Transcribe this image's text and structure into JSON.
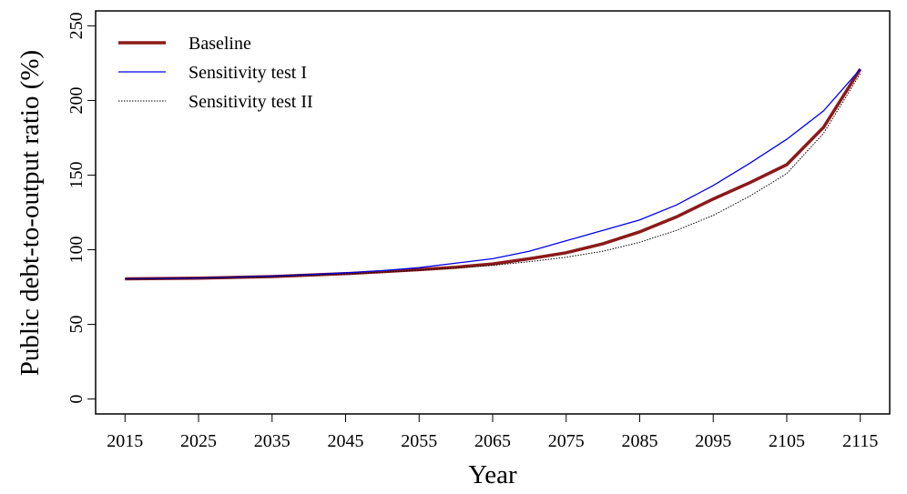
{
  "chart_data": {
    "type": "line",
    "x_label": "Year",
    "y_label": "Public debt-to-output ratio (%)",
    "x": [
      2015,
      2020,
      2025,
      2030,
      2035,
      2040,
      2045,
      2050,
      2055,
      2060,
      2065,
      2070,
      2075,
      2080,
      2085,
      2090,
      2095,
      2100,
      2105,
      2110,
      2115
    ],
    "series": [
      {
        "name": "Baseline",
        "color": "#8b1a1a",
        "width": 3.5,
        "dash": "none",
        "values": [
          80.5,
          80.7,
          81,
          81.5,
          82,
          83,
          84,
          85.3,
          86.7,
          88.3,
          90.5,
          94,
          98,
          104,
          112,
          122,
          134,
          145,
          157,
          182,
          221
        ]
      },
      {
        "name": "Sensitivity test I",
        "color": "#0000ee",
        "width": 1.3,
        "dash": "none",
        "values": [
          80.5,
          80.7,
          81,
          81.6,
          82.3,
          83.3,
          84.5,
          86,
          88,
          91,
          94,
          99,
          106,
          113,
          120,
          130,
          143,
          158,
          174,
          193,
          221
        ]
      },
      {
        "name": "Sensitivity test II",
        "color": "#000000",
        "width": 1,
        "dash": "1.5 1.5",
        "values": [
          80.5,
          80.7,
          81,
          81.5,
          82,
          82.9,
          83.8,
          85,
          86.3,
          87.8,
          89.5,
          92,
          95,
          99,
          105,
          113,
          123,
          136,
          151,
          178,
          218
        ]
      }
    ],
    "xlim": [
      2011,
      2119
    ],
    "ylim": [
      -10,
      260
    ],
    "xticks": [
      2015,
      2025,
      2035,
      2045,
      2055,
      2065,
      2075,
      2085,
      2095,
      2105,
      2115
    ],
    "yticks": [
      0,
      50,
      100,
      150,
      200,
      250
    ],
    "legend": "top-left"
  }
}
